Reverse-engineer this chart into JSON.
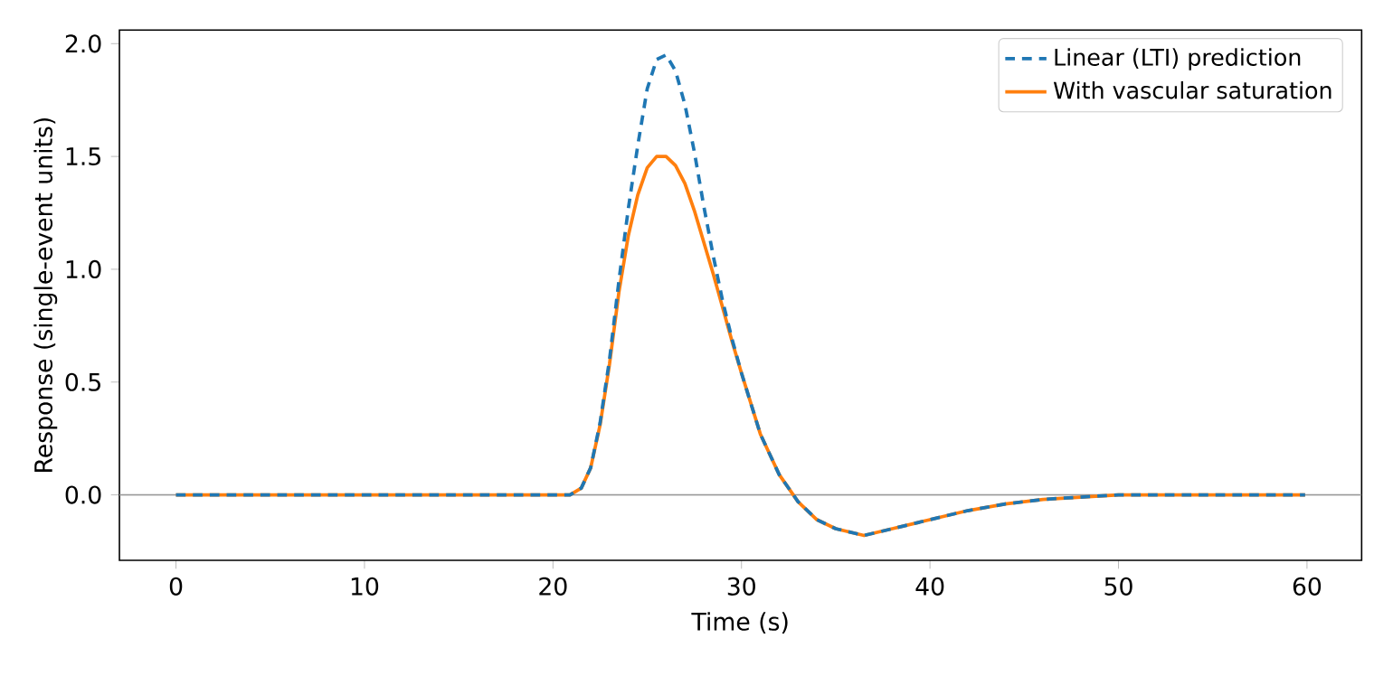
{
  "chart_data": {
    "type": "line",
    "xlabel": "Time (s)",
    "ylabel": "Response (single-event units)",
    "xlim": [
      -3,
      62.9
    ],
    "ylim": [
      -0.29,
      2.06
    ],
    "xticks": [
      0,
      10,
      20,
      30,
      40,
      50,
      60
    ],
    "yticks": [
      {
        "value": 0,
        "label": "0.0"
      },
      {
        "value": 0.5,
        "label": "0.5"
      },
      {
        "value": 1,
        "label": "1.0"
      },
      {
        "value": 1.5,
        "label": "1.5"
      },
      {
        "value": 2,
        "label": "2.0"
      }
    ],
    "legend": "top right",
    "grid": false,
    "ref_lines": [
      {
        "axis": "y",
        "value": 0,
        "color": "#999999",
        "line_style": "solid"
      }
    ],
    "series": [
      {
        "name": "Linear (LTI) prediction",
        "color": "#1f77b4",
        "line_style": "dashed",
        "x": [
          0,
          5,
          10,
          15,
          20,
          20.9,
          21.5,
          22,
          22.5,
          23,
          23.5,
          24,
          24.5,
          25,
          25.5,
          26,
          26.5,
          27,
          27.5,
          28,
          28.5,
          29,
          29.5,
          30,
          31,
          32,
          33,
          34,
          35,
          36,
          36.5,
          37,
          38,
          40,
          42,
          44,
          46,
          48,
          50,
          55,
          59.9
        ],
        "values": [
          0,
          0,
          0,
          0,
          0,
          0,
          0.03,
          0.12,
          0.32,
          0.6,
          0.95,
          1.27,
          1.55,
          1.8,
          1.93,
          1.95,
          1.88,
          1.73,
          1.52,
          1.28,
          1.06,
          0.86,
          0.69,
          0.54,
          0.27,
          0.09,
          -0.03,
          -0.11,
          -0.15,
          -0.17,
          -0.18,
          -0.17,
          -0.15,
          -0.11,
          -0.07,
          -0.04,
          -0.02,
          -0.01,
          0,
          0,
          0
        ]
      },
      {
        "name": "With vascular saturation",
        "color": "#ff7f0e",
        "line_style": "solid",
        "x": [
          0,
          5,
          10,
          15,
          20,
          20.9,
          21.5,
          22,
          22.5,
          23,
          23.5,
          24,
          24.5,
          25,
          25.5,
          26,
          26.5,
          27,
          27.5,
          28,
          28.5,
          29,
          29.5,
          30,
          31,
          32,
          33,
          34,
          35,
          36,
          36.5,
          37,
          38,
          40,
          42,
          44,
          46,
          48,
          50,
          55,
          59.9
        ],
        "values": [
          0,
          0,
          0,
          0,
          0,
          0,
          0.03,
          0.12,
          0.31,
          0.58,
          0.9,
          1.15,
          1.33,
          1.45,
          1.5,
          1.5,
          1.46,
          1.38,
          1.26,
          1.12,
          0.98,
          0.83,
          0.68,
          0.54,
          0.27,
          0.09,
          -0.03,
          -0.11,
          -0.15,
          -0.17,
          -0.18,
          -0.17,
          -0.15,
          -0.11,
          -0.07,
          -0.04,
          -0.02,
          -0.01,
          0,
          0,
          0
        ]
      }
    ]
  }
}
